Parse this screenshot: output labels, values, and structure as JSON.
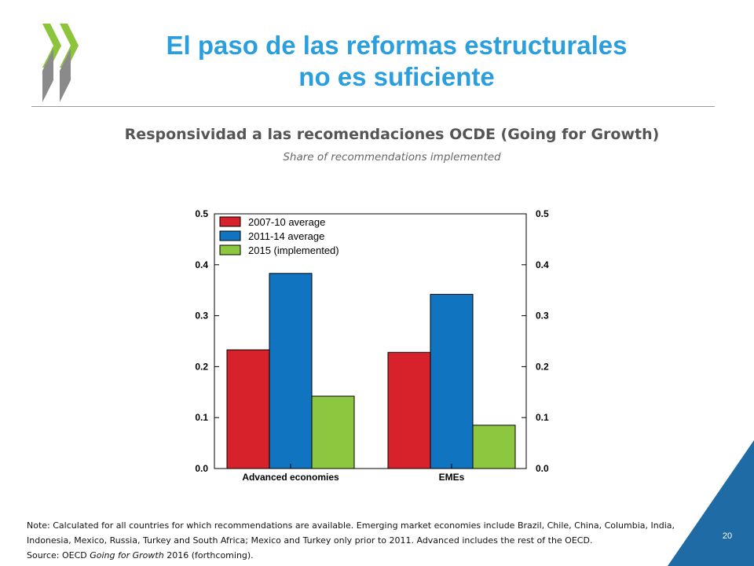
{
  "slide": {
    "title_line1": "El paso de las reformas estructurales",
    "title_line2": "no es suficiente",
    "page_number": "20",
    "colors": {
      "title": "#2b9fde",
      "logo_green": "#8cc43c",
      "logo_grey": "#8a8a8a",
      "corner": "#1f6ba6"
    }
  },
  "chart_header": {
    "title": "Responsividad a las recomendaciones OCDE (Going for Growth)",
    "subtitle": "Share of recommendations implemented"
  },
  "chart_data": {
    "type": "bar",
    "categories": [
      "Advanced economies",
      "EMEs"
    ],
    "series": [
      {
        "name": "2007-10 average",
        "color": "#d7222c",
        "values": [
          0.233,
          0.228
        ]
      },
      {
        "name": "2011-14 average",
        "color": "#1074c1",
        "values": [
          0.383,
          0.342
        ]
      },
      {
        "name": "2015 (implemented)",
        "color": "#8dc740",
        "values": [
          0.142,
          0.085
        ]
      }
    ],
    "ylim": [
      0,
      0.5
    ],
    "yticks": [
      "0.0",
      "0.1",
      "0.2",
      "0.3",
      "0.4",
      "0.5"
    ],
    "y_axis_both_sides": true,
    "grid": false,
    "legend_position": "top-left"
  },
  "notes": {
    "note_label": "Note",
    "note_text": ": Calculated for all countries for which recommendations are available. Emerging market economies include Brazil, Chile, China, Columbia, India, Indonesia, Mexico, Russia, Turkey and South Africa; Mexico and Turkey only prior to 2011.  Advanced includes the rest of the OECD.",
    "source_label": "Source",
    "source_prefix": ": OECD ",
    "source_italic": "Going for Growth",
    "source_suffix": " 2016 (forthcoming)."
  }
}
